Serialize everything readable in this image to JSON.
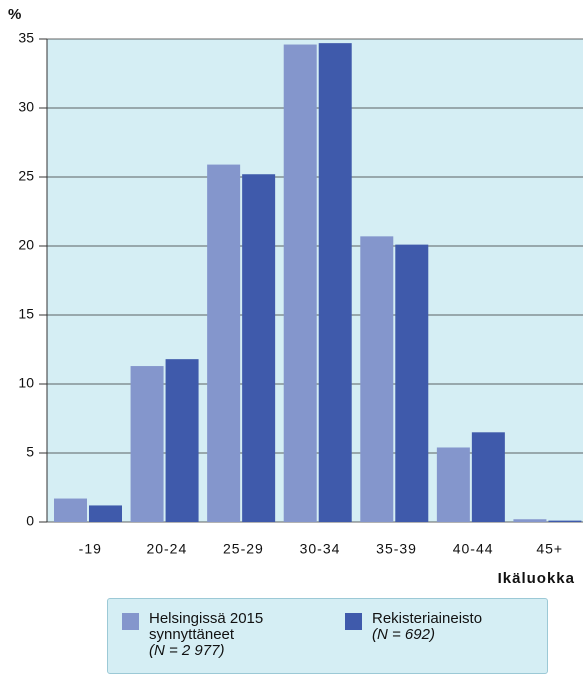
{
  "chart_data": {
    "type": "bar",
    "y_label": "%",
    "x_label": "Ikäluokka",
    "categories": [
      "-19",
      "20-24",
      "25-29",
      "30-34",
      "35-39",
      "40-44",
      "45+"
    ],
    "series": [
      {
        "name": "Helsingissä 2015 synnyttäneet",
        "note": "(N = 2 977)",
        "color": "#8496cc",
        "values": [
          1.7,
          11.3,
          25.9,
          34.6,
          20.7,
          5.4,
          0.2
        ]
      },
      {
        "name": "Rekisteriaineisto",
        "note": "(N = 692)",
        "color": "#3f5aab",
        "values": [
          1.2,
          11.8,
          25.2,
          34.7,
          20.1,
          6.5,
          0.1
        ]
      }
    ],
    "ylim": [
      0,
      35
    ],
    "yticks": [
      0,
      5,
      10,
      15,
      20,
      25,
      30,
      35
    ],
    "grid": true,
    "background": "#d5eef4"
  }
}
